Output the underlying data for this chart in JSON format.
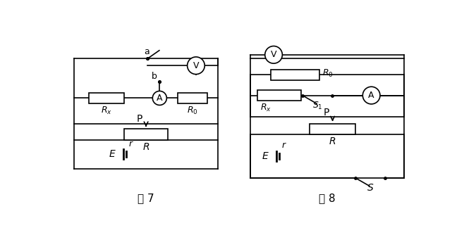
{
  "bg_color": "#ffffff",
  "line_color": "#000000",
  "lw": 1.2,
  "fig7_title": "图 7",
  "fig8_title": "图 8",
  "labels": {
    "Rx": "$R_x$",
    "R0": "$R_0$",
    "R": "$R$",
    "r": "$r$",
    "E": "$E$",
    "P": "P",
    "a": "a",
    "b": "b",
    "V": "V",
    "A": "A",
    "S1": "$S_1$",
    "S": "$S$"
  }
}
